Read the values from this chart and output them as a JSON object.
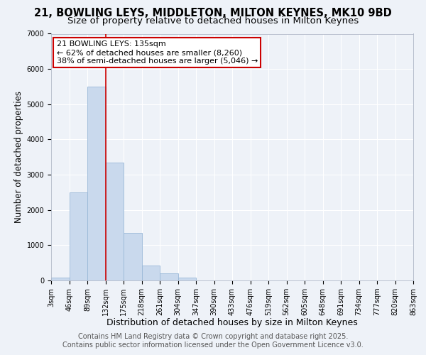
{
  "title": "21, BOWLING LEYS, MIDDLETON, MILTON KEYNES, MK10 9BD",
  "subtitle": "Size of property relative to detached houses in Milton Keynes",
  "xlabel": "Distribution of detached houses by size in Milton Keynes",
  "ylabel": "Number of detached properties",
  "bar_values": [
    75,
    2500,
    5500,
    3350,
    1350,
    425,
    200,
    75,
    0,
    0,
    0,
    0,
    0,
    0,
    0,
    0,
    0,
    0,
    0,
    0
  ],
  "bin_labels": [
    "3sqm",
    "46sqm",
    "89sqm",
    "132sqm",
    "175sqm",
    "218sqm",
    "261sqm",
    "304sqm",
    "347sqm",
    "390sqm",
    "433sqm",
    "476sqm",
    "519sqm",
    "562sqm",
    "605sqm",
    "648sqm",
    "691sqm",
    "734sqm",
    "777sqm",
    "820sqm",
    "863sqm"
  ],
  "bar_color": "#c9d9ed",
  "bar_edge_color": "#9ab8d8",
  "vline_x": 3,
  "vline_color": "#cc0000",
  "annotation_text": "21 BOWLING LEYS: 135sqm\n← 62% of detached houses are smaller (8,260)\n38% of semi-detached houses are larger (5,046) →",
  "annotation_box_color": "white",
  "annotation_box_edgecolor": "#cc0000",
  "ylim": [
    0,
    7000
  ],
  "yticks": [
    0,
    1000,
    2000,
    3000,
    4000,
    5000,
    6000,
    7000
  ],
  "footer_line1": "Contains HM Land Registry data © Crown copyright and database right 2025.",
  "footer_line2": "Contains public sector information licensed under the Open Government Licence v3.0.",
  "bg_color": "#eef2f8",
  "title_fontsize": 10.5,
  "subtitle_fontsize": 9.5,
  "xlabel_fontsize": 9,
  "ylabel_fontsize": 8.5,
  "tick_fontsize": 7,
  "annotation_fontsize": 8,
  "footer_fontsize": 7
}
